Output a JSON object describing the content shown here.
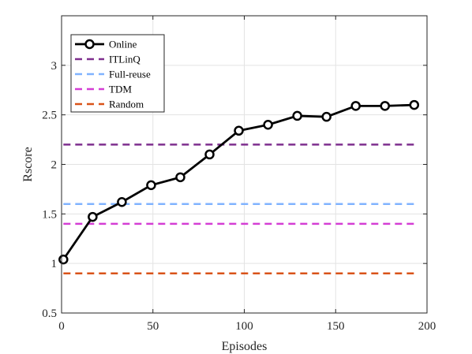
{
  "chart_data": {
    "type": "line",
    "xlabel": "Episodes",
    "ylabel": "Rscore",
    "xlim": [
      0,
      200
    ],
    "ylim": [
      0.5,
      3.5
    ],
    "x_ticks": [
      0,
      50,
      100,
      150,
      200
    ],
    "y_ticks": [
      0.5,
      1,
      1.5,
      2,
      2.5,
      3
    ],
    "x_tick_labels": [
      "0",
      "50",
      "100",
      "150",
      "200"
    ],
    "y_tick_labels": [
      "0.5",
      "1",
      "1.5",
      "2",
      "2.5",
      "3"
    ],
    "grid": true,
    "legend_position": "top-left",
    "series": [
      {
        "name": "Online",
        "color": "#000000",
        "style": "solid-circle-markers",
        "x": [
          1,
          17,
          33,
          49,
          65,
          81,
          97,
          113,
          129,
          145,
          161,
          177,
          193
        ],
        "y": [
          1.04,
          1.47,
          1.62,
          1.79,
          1.87,
          2.1,
          2.34,
          2.4,
          2.49,
          2.48,
          2.59,
          2.59,
          2.6
        ]
      },
      {
        "name": "ITLinQ",
        "color": "#7E2F8E",
        "style": "dashed",
        "x": [
          1,
          193
        ],
        "y": [
          2.2,
          2.2
        ]
      },
      {
        "name": "Full-reuse",
        "color": "#80B3FF",
        "style": "dashed",
        "x": [
          1,
          193
        ],
        "y": [
          1.6,
          1.6
        ]
      },
      {
        "name": "TDM",
        "color": "#D43ED4",
        "style": "dashed",
        "x": [
          1,
          193
        ],
        "y": [
          1.4,
          1.4
        ]
      },
      {
        "name": "Random",
        "color": "#D95319",
        "style": "dashed",
        "x": [
          1,
          193
        ],
        "y": [
          0.9,
          0.9
        ]
      }
    ]
  }
}
